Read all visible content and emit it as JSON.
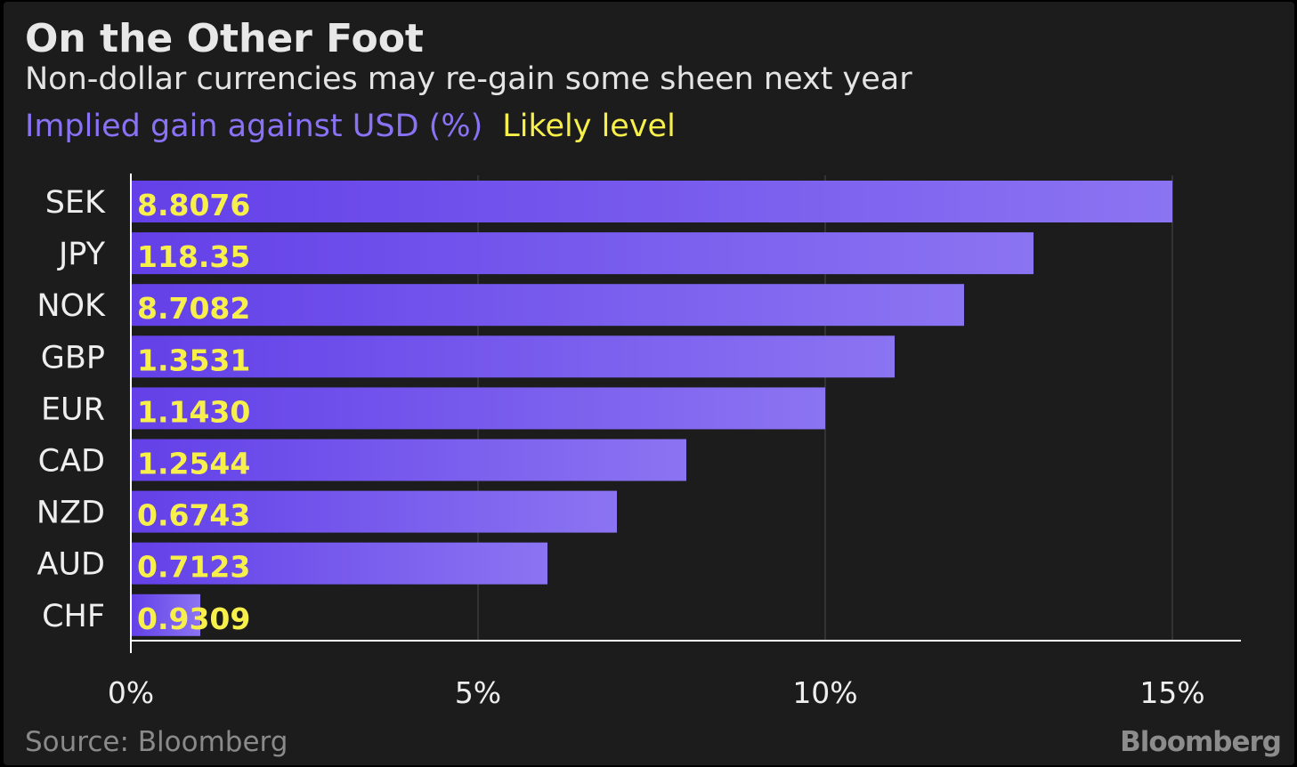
{
  "title": "On the Other Foot",
  "subtitle": "Non-dollar currencies may re-gain some sheen next year",
  "legend": {
    "bar_label": "Implied gain against USD (%)",
    "level_label": "Likely level"
  },
  "source": "Source: Bloomberg",
  "brand": "Bloomberg",
  "colors": {
    "background": "#1c1c1c",
    "bar_start": "#6340e8",
    "bar_end": "#8b74f2",
    "level_text": "#f8f04a",
    "axis": "#ffffff",
    "grid": "#4a4a4a",
    "label_text": "#eeeeee"
  },
  "chart_data": {
    "type": "bar",
    "orientation": "horizontal",
    "categories": [
      "SEK",
      "JPY",
      "NOK",
      "GBP",
      "EUR",
      "CAD",
      "NZD",
      "AUD",
      "CHF"
    ],
    "values": [
      15,
      13,
      12,
      11,
      10,
      8,
      7,
      6,
      1
    ],
    "likely_levels": [
      "8.8076",
      "118.35",
      "8.7082",
      "1.3531",
      "1.1430",
      "1.2544",
      "0.6743",
      "0.7123",
      "0.9309"
    ],
    "xlim": [
      0,
      16
    ],
    "xticks": [
      0,
      5,
      10,
      15
    ],
    "xtick_labels": [
      "0%",
      "5%",
      "10%",
      "15%"
    ],
    "grid": true
  }
}
